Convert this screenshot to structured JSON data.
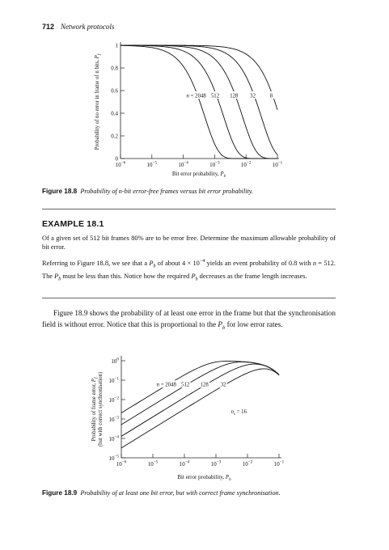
{
  "header": {
    "page_number": "712",
    "running_title": "Network protocols"
  },
  "figure_18_8": {
    "caption_label": "Figure 18.8",
    "caption_text": "Probability of n-bit error-free frames versus bit error probability.",
    "chart_data": {
      "type": "line",
      "ylabel": "Probability of no error in frame of n bits, P_f",
      "xlabel": "Bit error probability, P_b",
      "x_scale": "log",
      "xlim": [
        1e-06,
        0.1
      ],
      "ylim": [
        0,
        1
      ],
      "x_ticks": [
        "10^-6",
        "10^-5",
        "10^-4",
        "10^-3",
        "10^-2",
        "10^-1"
      ],
      "y_ticks": [
        "0",
        "0.2",
        "0.4",
        "0.6",
        "0.8",
        "1"
      ],
      "annotation": "n = 2048",
      "series": [
        {
          "name": "n = 2048",
          "n": 2048
        },
        {
          "name": "512",
          "n": 512
        },
        {
          "name": "128",
          "n": 128
        },
        {
          "name": "32",
          "n": 32
        },
        {
          "name": "8",
          "n": 8
        }
      ],
      "curve_labels": [
        "n = 2048",
        "512",
        "128",
        "32",
        "8"
      ]
    }
  },
  "example": {
    "title": "EXAMPLE 18.1",
    "problem": "Of a given set of 512 bit frames 80% are to be error free. Determine the maximum allowable probability of bit error.",
    "solution": "Referring to Figure 18.8, we see that a P_b of about 4 × 10^-4 yields an event probability of 0.8 with n = 512. The P_b must be less than this. Notice how the required P_b decreases as the frame length increases."
  },
  "body_text": "Figure 18.9 shows the probability of at least one error in the frame but that the synchronisation field is without error. Notice that this is proportional to the P_b for low error rates.",
  "figure_18_9": {
    "caption_label": "Figure 18.9",
    "caption_text": "Probability of at least one bit error, but with correct frame synchronisation.",
    "chart_data": {
      "type": "line",
      "ylabel_line1": "Probability of frame error, P_f",
      "ylabel_line2": "(but with correct synchronisation)",
      "xlabel": "Bit error probability, P_b",
      "x_scale": "log",
      "y_scale": "log",
      "xlim": [
        1e-06,
        0.1
      ],
      "ylim": [
        1e-05,
        1
      ],
      "x_ticks": [
        "10^-6",
        "10^-5",
        "10^-4",
        "10^-3",
        "10^-2",
        "10^-1"
      ],
      "y_ticks": [
        "10^0",
        "10^-1",
        "10^-2",
        "10^-3",
        "10^-4",
        "10^-5"
      ],
      "series": [
        {
          "name": "n = 2048",
          "n": 2048
        },
        {
          "name": "512",
          "n": 512
        },
        {
          "name": "128",
          "n": 128
        },
        {
          "name": "32",
          "n": 32
        }
      ],
      "annotation": "n_s = 16",
      "sync_bits": 16
    }
  }
}
